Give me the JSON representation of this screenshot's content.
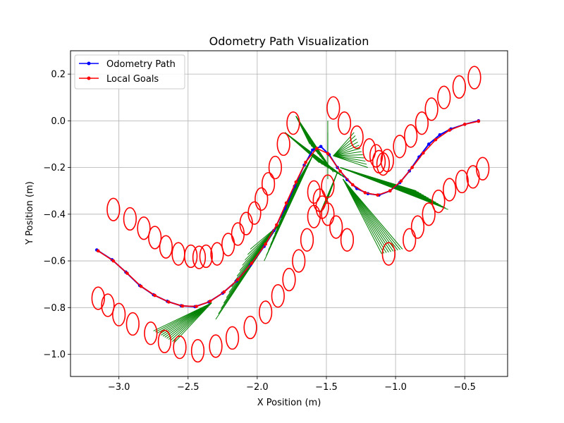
{
  "chart_data": {
    "type": "line",
    "title": "Odometry Path Visualization",
    "xlabel": "X Position (m)",
    "ylabel": "Y Position (m)",
    "xlim": [
      -3.35,
      -0.19
    ],
    "ylim": [
      -1.095,
      0.3
    ],
    "xticks": [
      -3.0,
      -2.5,
      -2.0,
      -1.5,
      -1.0,
      -0.5
    ],
    "xtick_labels": [
      "−3.0",
      "−2.5",
      "−2.0",
      "−1.5",
      "−1.0",
      "−0.5"
    ],
    "yticks": [
      -1.0,
      -0.8,
      -0.6,
      -0.4,
      -0.2,
      0.0,
      0.2
    ],
    "ytick_labels": [
      "−1.0",
      "−0.8",
      "−0.6",
      "−0.4",
      "−0.2",
      "0.0",
      "0.2"
    ],
    "grid": true,
    "legend_position": "upper-left",
    "series": [
      {
        "name": "Odometry Path",
        "color": "#0000ff",
        "points": [
          [
            -3.16,
            -0.553
          ],
          [
            -3.05,
            -0.595
          ],
          [
            -2.95,
            -0.648
          ],
          [
            -2.85,
            -0.705
          ],
          [
            -2.75,
            -0.745
          ],
          [
            -2.65,
            -0.773
          ],
          [
            -2.55,
            -0.792
          ],
          [
            -2.45,
            -0.796
          ],
          [
            -2.35,
            -0.776
          ],
          [
            -2.25,
            -0.738
          ],
          [
            -2.15,
            -0.686
          ],
          [
            -2.05,
            -0.618
          ],
          [
            -1.95,
            -0.538
          ],
          [
            -1.88,
            -0.47
          ],
          [
            -1.8,
            -0.375
          ],
          [
            -1.73,
            -0.28
          ],
          [
            -1.66,
            -0.19
          ],
          [
            -1.6,
            -0.125
          ],
          [
            -1.54,
            -0.11
          ],
          [
            -1.48,
            -0.145
          ],
          [
            -1.42,
            -0.2
          ],
          [
            -1.35,
            -0.252
          ],
          [
            -1.28,
            -0.29
          ],
          [
            -1.2,
            -0.312
          ],
          [
            -1.12,
            -0.318
          ],
          [
            -1.04,
            -0.3
          ],
          [
            -0.97,
            -0.265
          ],
          [
            -0.9,
            -0.215
          ],
          [
            -0.83,
            -0.155
          ],
          [
            -0.76,
            -0.1
          ],
          [
            -0.68,
            -0.06
          ],
          [
            -0.6,
            -0.035
          ],
          [
            -0.5,
            -0.015
          ],
          [
            -0.4,
            0.0
          ]
        ]
      },
      {
        "name": "Local Goals",
        "color": "#ff0000",
        "points": [
          [
            -3.15,
            -0.557
          ],
          [
            -3.04,
            -0.6
          ],
          [
            -2.94,
            -0.653
          ],
          [
            -2.84,
            -0.709
          ],
          [
            -2.74,
            -0.748
          ],
          [
            -2.64,
            -0.776
          ],
          [
            -2.54,
            -0.793
          ],
          [
            -2.44,
            -0.795
          ],
          [
            -2.34,
            -0.773
          ],
          [
            -2.24,
            -0.733
          ],
          [
            -2.14,
            -0.68
          ],
          [
            -2.04,
            -0.61
          ],
          [
            -1.94,
            -0.528
          ],
          [
            -1.86,
            -0.446
          ],
          [
            -1.79,
            -0.352
          ],
          [
            -1.72,
            -0.262
          ],
          [
            -1.65,
            -0.178
          ],
          [
            -1.57,
            -0.118
          ],
          [
            -1.49,
            -0.14
          ],
          [
            -1.4,
            -0.216
          ],
          [
            -1.31,
            -0.274
          ],
          [
            -1.22,
            -0.308
          ],
          [
            -1.13,
            -0.318
          ],
          [
            -1.04,
            -0.3
          ],
          [
            -0.96,
            -0.258
          ],
          [
            -0.88,
            -0.2
          ],
          [
            -0.8,
            -0.138
          ],
          [
            -0.71,
            -0.081
          ],
          [
            -0.61,
            -0.04
          ],
          [
            -0.5,
            -0.015
          ],
          [
            -0.4,
            -0.002
          ]
        ]
      }
    ],
    "ellipse_color": "#ff0000",
    "ellipse_radii": [
      0.045,
      0.048
    ],
    "ellipses": [
      [
        -3.15,
        -0.76
      ],
      [
        -3.08,
        -0.79
      ],
      [
        -3.0,
        -0.83
      ],
      [
        -2.9,
        -0.87
      ],
      [
        -2.77,
        -0.91
      ],
      [
        -2.67,
        -0.945
      ],
      [
        -2.56,
        -0.97
      ],
      [
        -2.43,
        -0.985
      ],
      [
        -2.3,
        -0.965
      ],
      [
        -2.18,
        -0.93
      ],
      [
        -2.05,
        -0.885
      ],
      [
        -1.94,
        -0.82
      ],
      [
        -1.85,
        -0.75
      ],
      [
        -1.77,
        -0.68
      ],
      [
        -1.7,
        -0.6
      ],
      [
        -1.64,
        -0.51
      ],
      [
        -1.59,
        -0.41
      ],
      [
        -1.55,
        -0.34
      ],
      [
        -1.49,
        -0.28
      ],
      [
        -1.43,
        -0.455
      ],
      [
        -1.35,
        -0.51
      ],
      [
        -3.04,
        -0.38
      ],
      [
        -2.92,
        -0.42
      ],
      [
        -2.82,
        -0.46
      ],
      [
        -2.74,
        -0.5
      ],
      [
        -2.66,
        -0.54
      ],
      [
        -2.57,
        -0.57
      ],
      [
        -2.48,
        -0.58
      ],
      [
        -2.42,
        -0.585
      ],
      [
        -2.37,
        -0.58
      ],
      [
        -2.29,
        -0.57
      ],
      [
        -2.21,
        -0.53
      ],
      [
        -2.14,
        -0.485
      ],
      [
        -2.08,
        -0.44
      ],
      [
        -2.02,
        -0.395
      ],
      [
        -1.97,
        -0.335
      ],
      [
        -1.92,
        -0.27
      ],
      [
        -1.87,
        -0.2
      ],
      [
        -1.81,
        -0.1
      ],
      [
        -1.74,
        -0.01
      ],
      [
        -1.59,
        -0.305
      ],
      [
        -1.53,
        -0.37
      ],
      [
        -1.49,
        -0.4
      ],
      [
        -1.45,
        0.055
      ],
      [
        -1.37,
        -0.01
      ],
      [
        -1.28,
        -0.07
      ],
      [
        -1.19,
        -0.125
      ],
      [
        -1.14,
        -0.15
      ],
      [
        -1.12,
        -0.175
      ],
      [
        -1.09,
        -0.185
      ],
      [
        -1.06,
        -0.17
      ],
      [
        -1.05,
        -0.57
      ],
      [
        -0.97,
        -0.11
      ],
      [
        -0.89,
        -0.065
      ],
      [
        -0.81,
        -0.01
      ],
      [
        -0.9,
        -0.51
      ],
      [
        -0.84,
        -0.455
      ],
      [
        -0.76,
        -0.4
      ],
      [
        -0.69,
        -0.345
      ],
      [
        -0.61,
        -0.295
      ],
      [
        -0.52,
        -0.26
      ],
      [
        -0.44,
        -0.24
      ],
      [
        -0.37,
        -0.205
      ],
      [
        -0.74,
        0.05
      ],
      [
        -0.65,
        0.1
      ],
      [
        -0.54,
        0.145
      ],
      [
        -0.43,
        0.185
      ]
    ],
    "ray_color": "#008000",
    "ray_fans": [
      {
        "from": [
          -2.33,
          -0.78
        ],
        "to_start": [
          -2.75,
          -0.9
        ],
        "to_end": [
          -2.6,
          -0.95
        ],
        "count": 12
      },
      {
        "from": [
          -1.85,
          -0.45
        ],
        "to_start": [
          -2.3,
          -0.85
        ],
        "to_end": [
          -2.05,
          -0.55
        ],
        "count": 14
      },
      {
        "from": [
          -1.6,
          -0.15
        ],
        "to_start": [
          -1.95,
          -0.6
        ],
        "to_end": [
          -1.75,
          -0.3
        ],
        "count": 14
      },
      {
        "from": [
          -1.72,
          0.02
        ],
        "to_start": [
          -1.62,
          -0.1
        ],
        "to_end": [
          -1.45,
          -0.22
        ],
        "count": 12
      },
      {
        "from": [
          -1.8,
          -0.05
        ],
        "to_start": [
          -1.55,
          -0.18
        ],
        "to_end": [
          -1.35,
          -0.25
        ],
        "count": 10
      },
      {
        "from": [
          -1.49,
          -0.1
        ],
        "to_start": [
          -1.49,
          -0.25
        ],
        "to_end": [
          -1.49,
          0.0
        ],
        "count": 6
      },
      {
        "from": [
          -1.45,
          -0.15
        ],
        "to_start": [
          -1.3,
          -0.05
        ],
        "to_end": [
          -1.2,
          -0.2
        ],
        "count": 12
      },
      {
        "from": [
          -1.4,
          -0.2
        ],
        "to_start": [
          -0.85,
          -0.3
        ],
        "to_end": [
          -0.62,
          -0.38
        ],
        "count": 14
      },
      {
        "from": [
          -1.38,
          -0.25
        ],
        "to_start": [
          -1.1,
          -0.57
        ],
        "to_end": [
          -0.95,
          -0.55
        ],
        "count": 10
      },
      {
        "from": [
          -1.42,
          -0.22
        ],
        "to_start": [
          -1.5,
          -0.35
        ],
        "to_end": [
          -1.55,
          -0.4
        ],
        "count": 6
      }
    ]
  }
}
